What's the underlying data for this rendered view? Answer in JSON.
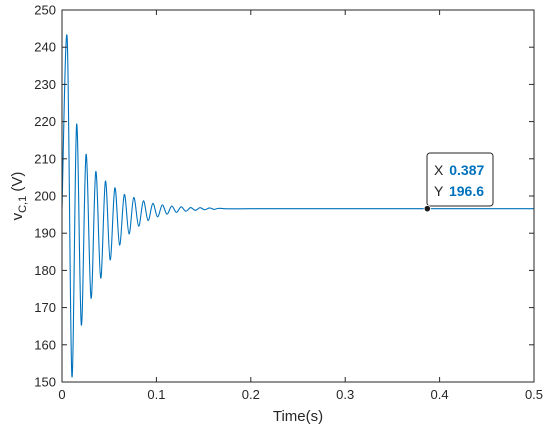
{
  "chart_data": {
    "type": "line",
    "xlabel": "Time(s)",
    "ylabel_main": "v",
    "ylabel_sub": "C,1",
    "ylabel_unit": " (V)",
    "xlim": [
      0,
      0.5
    ],
    "ylim": [
      150,
      250
    ],
    "x_ticks": [
      0,
      0.1,
      0.2,
      0.3,
      0.4,
      0.5
    ],
    "x_tick_labels": [
      "0",
      "0.1",
      "0.2",
      "0.3",
      "0.4",
      "0.5"
    ],
    "y_ticks": [
      150,
      160,
      170,
      180,
      190,
      200,
      210,
      220,
      230,
      240,
      250
    ],
    "y_tick_labels": [
      "150",
      "160",
      "170",
      "180",
      "190",
      "200",
      "210",
      "220",
      "230",
      "240",
      "250"
    ],
    "grid": false,
    "series": [
      {
        "color": "#0072BD",
        "x": [
          0,
          0.0055,
          0.0105,
          0.0155,
          0.0205,
          0.0255,
          0.0308,
          0.0358,
          0.041,
          0.046,
          0.051,
          0.056,
          0.061,
          0.066,
          0.071,
          0.076,
          0.0812,
          0.0862,
          0.0912,
          0.0962,
          0.1012,
          0.1062,
          0.1112,
          0.1162,
          0.1212,
          0.1262,
          0.1312,
          0.1362,
          0.1412,
          0.1462,
          0.1512,
          0.1562,
          0.1612,
          0.1662,
          0.175,
          0.2,
          0.25,
          0.3,
          0.35,
          0.387,
          0.4,
          0.45,
          0.5
        ],
        "y": [
          196.6,
          242.5,
          151.5,
          219.3,
          165.3,
          211.2,
          172.5,
          206.6,
          177.9,
          204.0,
          182.8,
          202.2,
          186.8,
          200.4,
          189.8,
          199.6,
          191.9,
          198.7,
          193.4,
          198.0,
          194.4,
          197.6,
          195.1,
          197.3,
          195.6,
          197.1,
          195.9,
          196.9,
          196.15,
          196.85,
          196.3,
          196.8,
          196.4,
          196.7,
          196.55,
          196.6,
          196.6,
          196.6,
          196.6,
          196.6,
          196.6,
          196.6,
          196.6
        ]
      }
    ],
    "datatip": {
      "x_label": "X",
      "x_value": "0.387",
      "y_label": "Y",
      "y_value": "196.6",
      "x": 0.387,
      "y": 196.6,
      "value_color": "#0072BD"
    }
  }
}
